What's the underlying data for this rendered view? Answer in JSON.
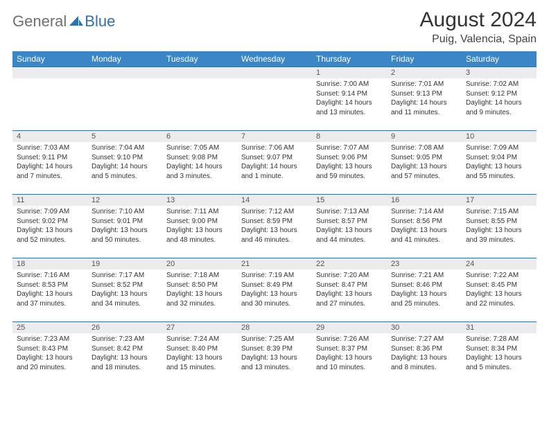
{
  "brand": {
    "part1": "General",
    "part2": "Blue"
  },
  "title": "August 2024",
  "location": "Puig, Valencia, Spain",
  "colors": {
    "header_bg": "#3b86c6",
    "border": "#2f6fb3",
    "daynum_bg": "#ececec",
    "text": "#333333",
    "logo_gray": "#6f6f6f",
    "logo_blue": "#2f6fb3"
  },
  "weekdays": [
    "Sunday",
    "Monday",
    "Tuesday",
    "Wednesday",
    "Thursday",
    "Friday",
    "Saturday"
  ],
  "weeks": [
    [
      {
        "blank": true
      },
      {
        "blank": true
      },
      {
        "blank": true
      },
      {
        "blank": true
      },
      {
        "n": "1",
        "sr": "7:00 AM",
        "ss": "9:14 PM",
        "dl": "14 hours and 13 minutes."
      },
      {
        "n": "2",
        "sr": "7:01 AM",
        "ss": "9:13 PM",
        "dl": "14 hours and 11 minutes."
      },
      {
        "n": "3",
        "sr": "7:02 AM",
        "ss": "9:12 PM",
        "dl": "14 hours and 9 minutes."
      }
    ],
    [
      {
        "n": "4",
        "sr": "7:03 AM",
        "ss": "9:11 PM",
        "dl": "14 hours and 7 minutes."
      },
      {
        "n": "5",
        "sr": "7:04 AM",
        "ss": "9:10 PM",
        "dl": "14 hours and 5 minutes."
      },
      {
        "n": "6",
        "sr": "7:05 AM",
        "ss": "9:08 PM",
        "dl": "14 hours and 3 minutes."
      },
      {
        "n": "7",
        "sr": "7:06 AM",
        "ss": "9:07 PM",
        "dl": "14 hours and 1 minute."
      },
      {
        "n": "8",
        "sr": "7:07 AM",
        "ss": "9:06 PM",
        "dl": "13 hours and 59 minutes."
      },
      {
        "n": "9",
        "sr": "7:08 AM",
        "ss": "9:05 PM",
        "dl": "13 hours and 57 minutes."
      },
      {
        "n": "10",
        "sr": "7:09 AM",
        "ss": "9:04 PM",
        "dl": "13 hours and 55 minutes."
      }
    ],
    [
      {
        "n": "11",
        "sr": "7:09 AM",
        "ss": "9:02 PM",
        "dl": "13 hours and 52 minutes."
      },
      {
        "n": "12",
        "sr": "7:10 AM",
        "ss": "9:01 PM",
        "dl": "13 hours and 50 minutes."
      },
      {
        "n": "13",
        "sr": "7:11 AM",
        "ss": "9:00 PM",
        "dl": "13 hours and 48 minutes."
      },
      {
        "n": "14",
        "sr": "7:12 AM",
        "ss": "8:59 PM",
        "dl": "13 hours and 46 minutes."
      },
      {
        "n": "15",
        "sr": "7:13 AM",
        "ss": "8:57 PM",
        "dl": "13 hours and 44 minutes."
      },
      {
        "n": "16",
        "sr": "7:14 AM",
        "ss": "8:56 PM",
        "dl": "13 hours and 41 minutes."
      },
      {
        "n": "17",
        "sr": "7:15 AM",
        "ss": "8:55 PM",
        "dl": "13 hours and 39 minutes."
      }
    ],
    [
      {
        "n": "18",
        "sr": "7:16 AM",
        "ss": "8:53 PM",
        "dl": "13 hours and 37 minutes."
      },
      {
        "n": "19",
        "sr": "7:17 AM",
        "ss": "8:52 PM",
        "dl": "13 hours and 34 minutes."
      },
      {
        "n": "20",
        "sr": "7:18 AM",
        "ss": "8:50 PM",
        "dl": "13 hours and 32 minutes."
      },
      {
        "n": "21",
        "sr": "7:19 AM",
        "ss": "8:49 PM",
        "dl": "13 hours and 30 minutes."
      },
      {
        "n": "22",
        "sr": "7:20 AM",
        "ss": "8:47 PM",
        "dl": "13 hours and 27 minutes."
      },
      {
        "n": "23",
        "sr": "7:21 AM",
        "ss": "8:46 PM",
        "dl": "13 hours and 25 minutes."
      },
      {
        "n": "24",
        "sr": "7:22 AM",
        "ss": "8:45 PM",
        "dl": "13 hours and 22 minutes."
      }
    ],
    [
      {
        "n": "25",
        "sr": "7:23 AM",
        "ss": "8:43 PM",
        "dl": "13 hours and 20 minutes."
      },
      {
        "n": "26",
        "sr": "7:23 AM",
        "ss": "8:42 PM",
        "dl": "13 hours and 18 minutes."
      },
      {
        "n": "27",
        "sr": "7:24 AM",
        "ss": "8:40 PM",
        "dl": "13 hours and 15 minutes."
      },
      {
        "n": "28",
        "sr": "7:25 AM",
        "ss": "8:39 PM",
        "dl": "13 hours and 13 minutes."
      },
      {
        "n": "29",
        "sr": "7:26 AM",
        "ss": "8:37 PM",
        "dl": "13 hours and 10 minutes."
      },
      {
        "n": "30",
        "sr": "7:27 AM",
        "ss": "8:36 PM",
        "dl": "13 hours and 8 minutes."
      },
      {
        "n": "31",
        "sr": "7:28 AM",
        "ss": "8:34 PM",
        "dl": "13 hours and 5 minutes."
      }
    ]
  ],
  "labels": {
    "sunrise": "Sunrise: ",
    "sunset": "Sunset: ",
    "daylight": "Daylight: "
  }
}
